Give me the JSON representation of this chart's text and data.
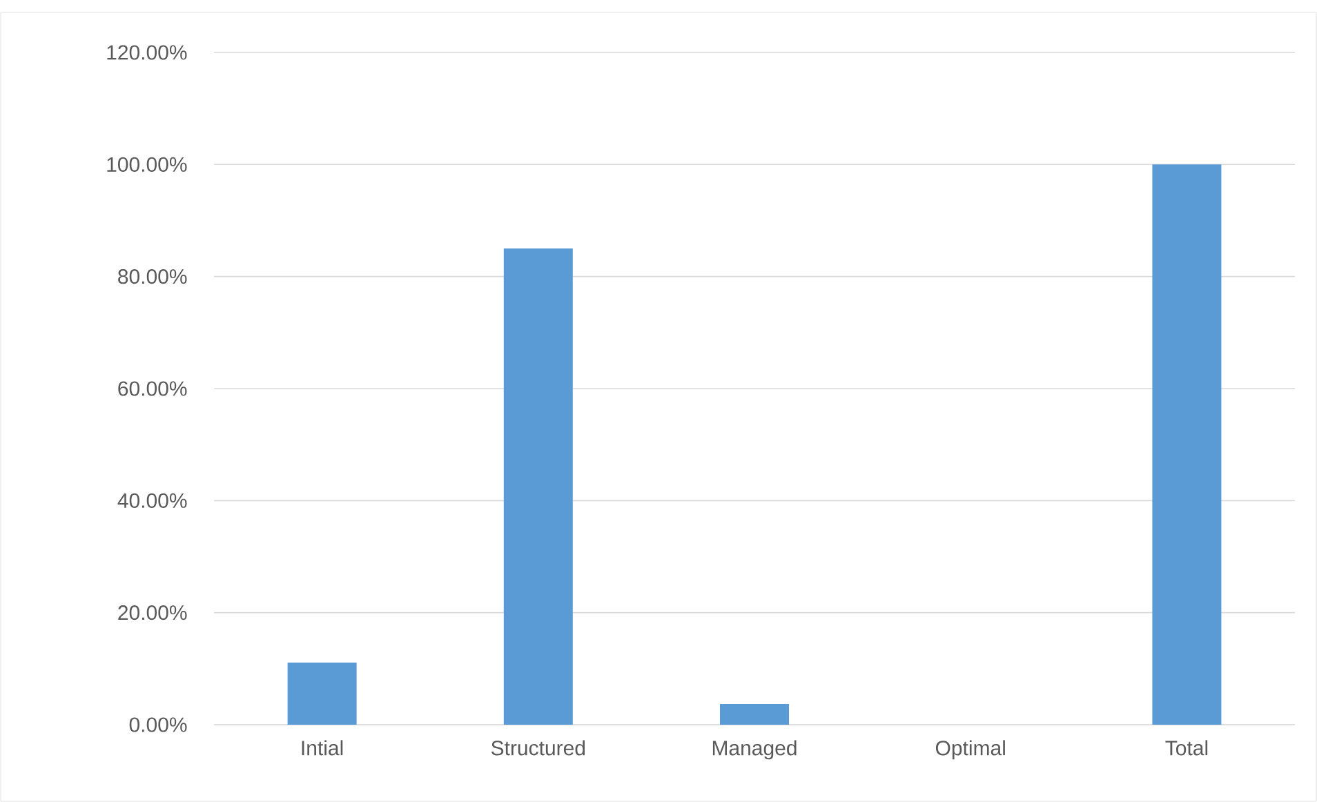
{
  "chart_data": {
    "type": "bar",
    "categories": [
      "Intial",
      "Structured",
      "Managed",
      "Optimal",
      "Total"
    ],
    "values": [
      11.1,
      85.0,
      3.7,
      0,
      100.0
    ],
    "color": "#5b9bd5",
    "ylim": [
      0,
      120
    ],
    "yticks": [
      {
        "value": 0,
        "label": "0.00%"
      },
      {
        "value": 20,
        "label": "20.00%"
      },
      {
        "value": 40,
        "label": "40.00%"
      },
      {
        "value": 60,
        "label": "60.00%"
      },
      {
        "value": 80,
        "label": "80.00%"
      },
      {
        "value": 100,
        "label": "100.00%"
      },
      {
        "value": 120,
        "label": "120.00%"
      }
    ],
    "grid": "y"
  }
}
